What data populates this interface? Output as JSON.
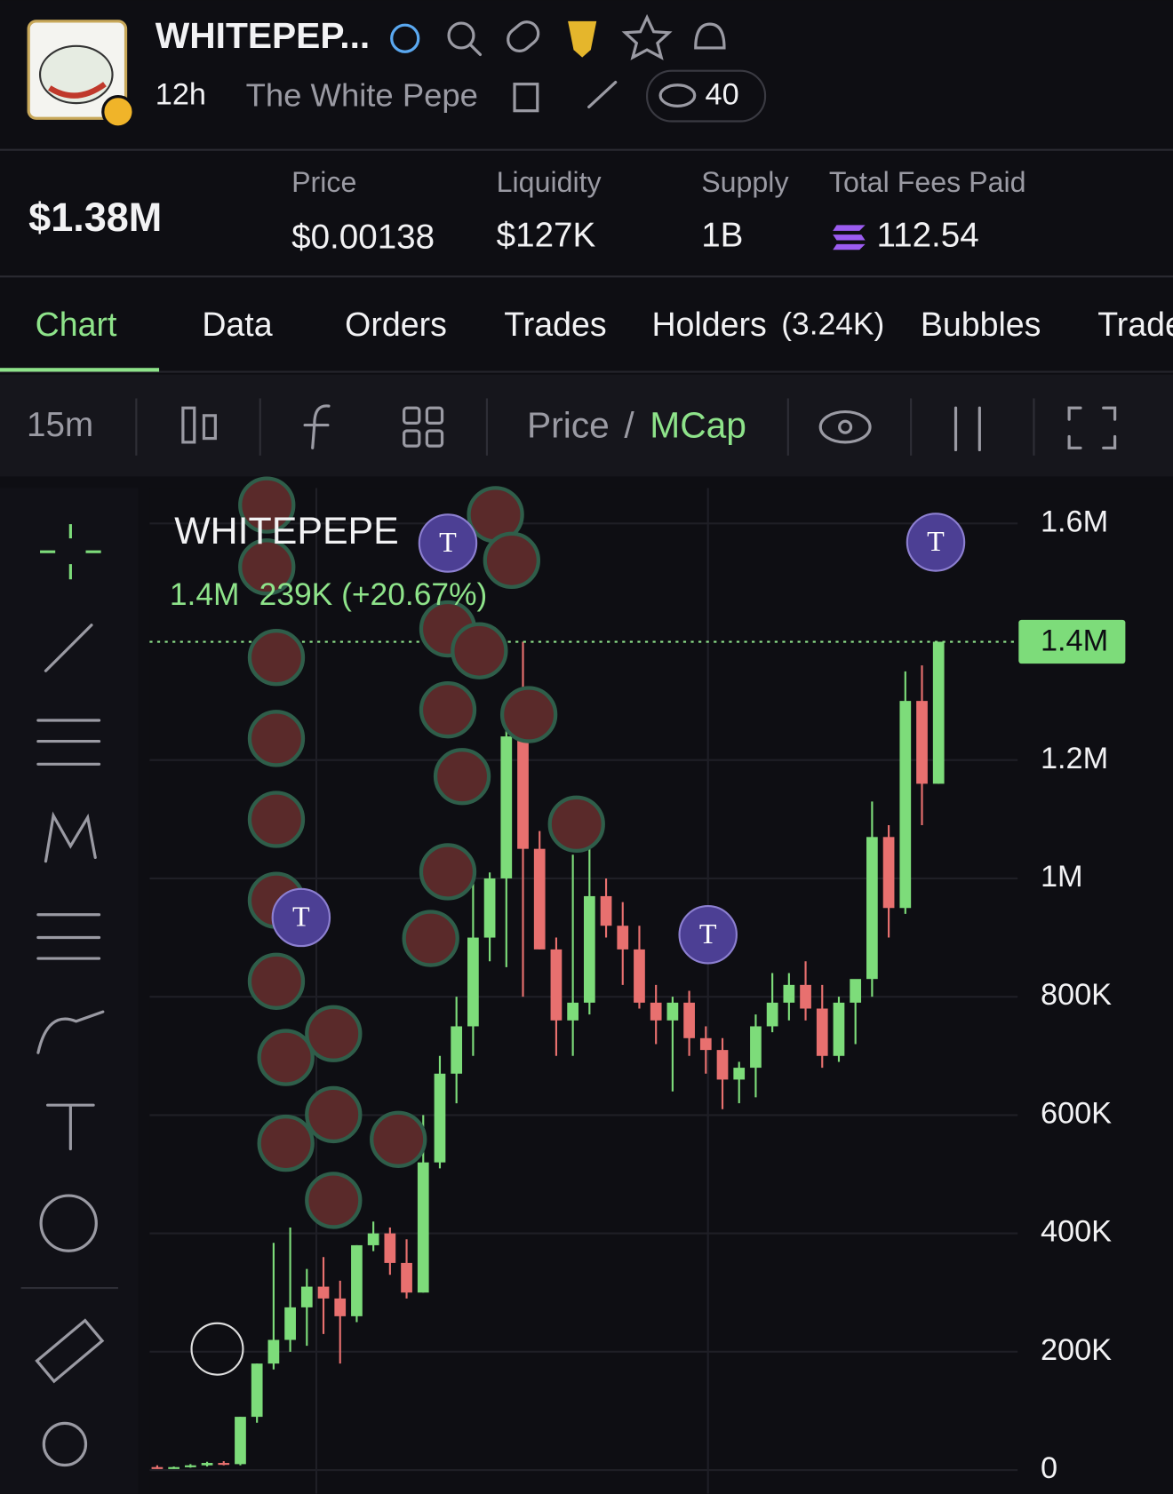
{
  "header": {
    "symbol": "WHITEPEP...",
    "age": "12h",
    "name": "The White Pepe",
    "watchers": "40"
  },
  "stats": {
    "market_cap": "$1.38M",
    "items": [
      {
        "label": "Price",
        "value": "$0.00138"
      },
      {
        "label": "Liquidity",
        "value": "$127K"
      },
      {
        "label": "Supply",
        "value": "1B"
      },
      {
        "label": "Total Fees Paid",
        "value": "112.54"
      }
    ]
  },
  "tabs": {
    "items": [
      "Chart",
      "Data",
      "Orders",
      "Trades",
      "Holders",
      "Bubbles",
      "Trade"
    ],
    "holders_count": "(3.24K)",
    "active": 0
  },
  "toolbar": {
    "interval": "15m",
    "price": "Price",
    "separator": "/",
    "mcap": "MCap"
  },
  "chart_data": {
    "type": "candlestick",
    "title": "WHITEPEPE",
    "legend_last": "1.4M",
    "legend_change": "239K (+20.67%)",
    "up_color": "#7ddc7a",
    "down_color": "#e8706f",
    "open": [
      5000,
      3000,
      5000,
      8000,
      12000,
      10000,
      90000,
      180000,
      220000,
      275000,
      310000,
      290000,
      260000,
      380000,
      400000,
      350000,
      300000,
      520000,
      670000,
      750000,
      900000,
      1000000,
      1240000,
      1050000,
      880000,
      760000,
      790000,
      970000,
      920000,
      880000,
      790000,
      760000,
      790000,
      730000,
      710000,
      660000,
      680000,
      750000,
      790000,
      820000,
      780000,
      700000,
      790000,
      830000,
      1070000,
      950000,
      1300000,
      1160000
    ],
    "high": [
      8000,
      6000,
      10000,
      14000,
      15000,
      90000,
      180000,
      384000,
      410000,
      340000,
      360000,
      320000,
      380000,
      420000,
      410000,
      390000,
      600000,
      700000,
      800000,
      1000000,
      1010000,
      1300000,
      1400000,
      1080000,
      900000,
      1040000,
      1080000,
      1000000,
      960000,
      920000,
      820000,
      800000,
      810000,
      750000,
      730000,
      690000,
      770000,
      840000,
      840000,
      860000,
      820000,
      800000,
      820000,
      1130000,
      1090000,
      1350000,
      1360000,
      1400000
    ],
    "low": [
      2000,
      2000,
      4000,
      6000,
      8000,
      8000,
      80000,
      170000,
      200000,
      210000,
      230000,
      180000,
      250000,
      370000,
      330000,
      290000,
      300000,
      510000,
      620000,
      700000,
      860000,
      850000,
      800000,
      880000,
      700000,
      700000,
      770000,
      900000,
      820000,
      780000,
      720000,
      640000,
      700000,
      670000,
      610000,
      620000,
      630000,
      740000,
      760000,
      760000,
      680000,
      690000,
      720000,
      800000,
      900000,
      940000,
      1090000,
      1160000
    ],
    "close": [
      3000,
      5000,
      8000,
      12000,
      10000,
      90000,
      180000,
      220000,
      275000,
      310000,
      290000,
      260000,
      380000,
      400000,
      350000,
      300000,
      520000,
      670000,
      750000,
      900000,
      1000000,
      1240000,
      1050000,
      880000,
      760000,
      790000,
      970000,
      920000,
      880000,
      790000,
      760000,
      790000,
      730000,
      710000,
      660000,
      680000,
      750000,
      790000,
      820000,
      780000,
      700000,
      790000,
      830000,
      1070000,
      950000,
      1300000,
      1160000,
      1400000
    ],
    "ylim": [
      -40000,
      1660000
    ],
    "yticks": [
      0,
      {
        "value": 200000,
        "label": "200K"
      },
      {
        "value": 400000,
        "label": "400K"
      },
      {
        "value": 600000,
        "label": "600K"
      },
      {
        "value": 800000,
        "label": "800K"
      },
      {
        "value": 1000000,
        "label": "1M"
      },
      {
        "value": 1200000,
        "label": "1.2M"
      },
      {
        "value": 1600000,
        "label": "1.6M"
      }
    ],
    "last_price": {
      "value": 1400000,
      "label": "1.4M"
    },
    "grid": true,
    "trade_markers": [
      "T",
      "T",
      "T",
      "T"
    ]
  }
}
